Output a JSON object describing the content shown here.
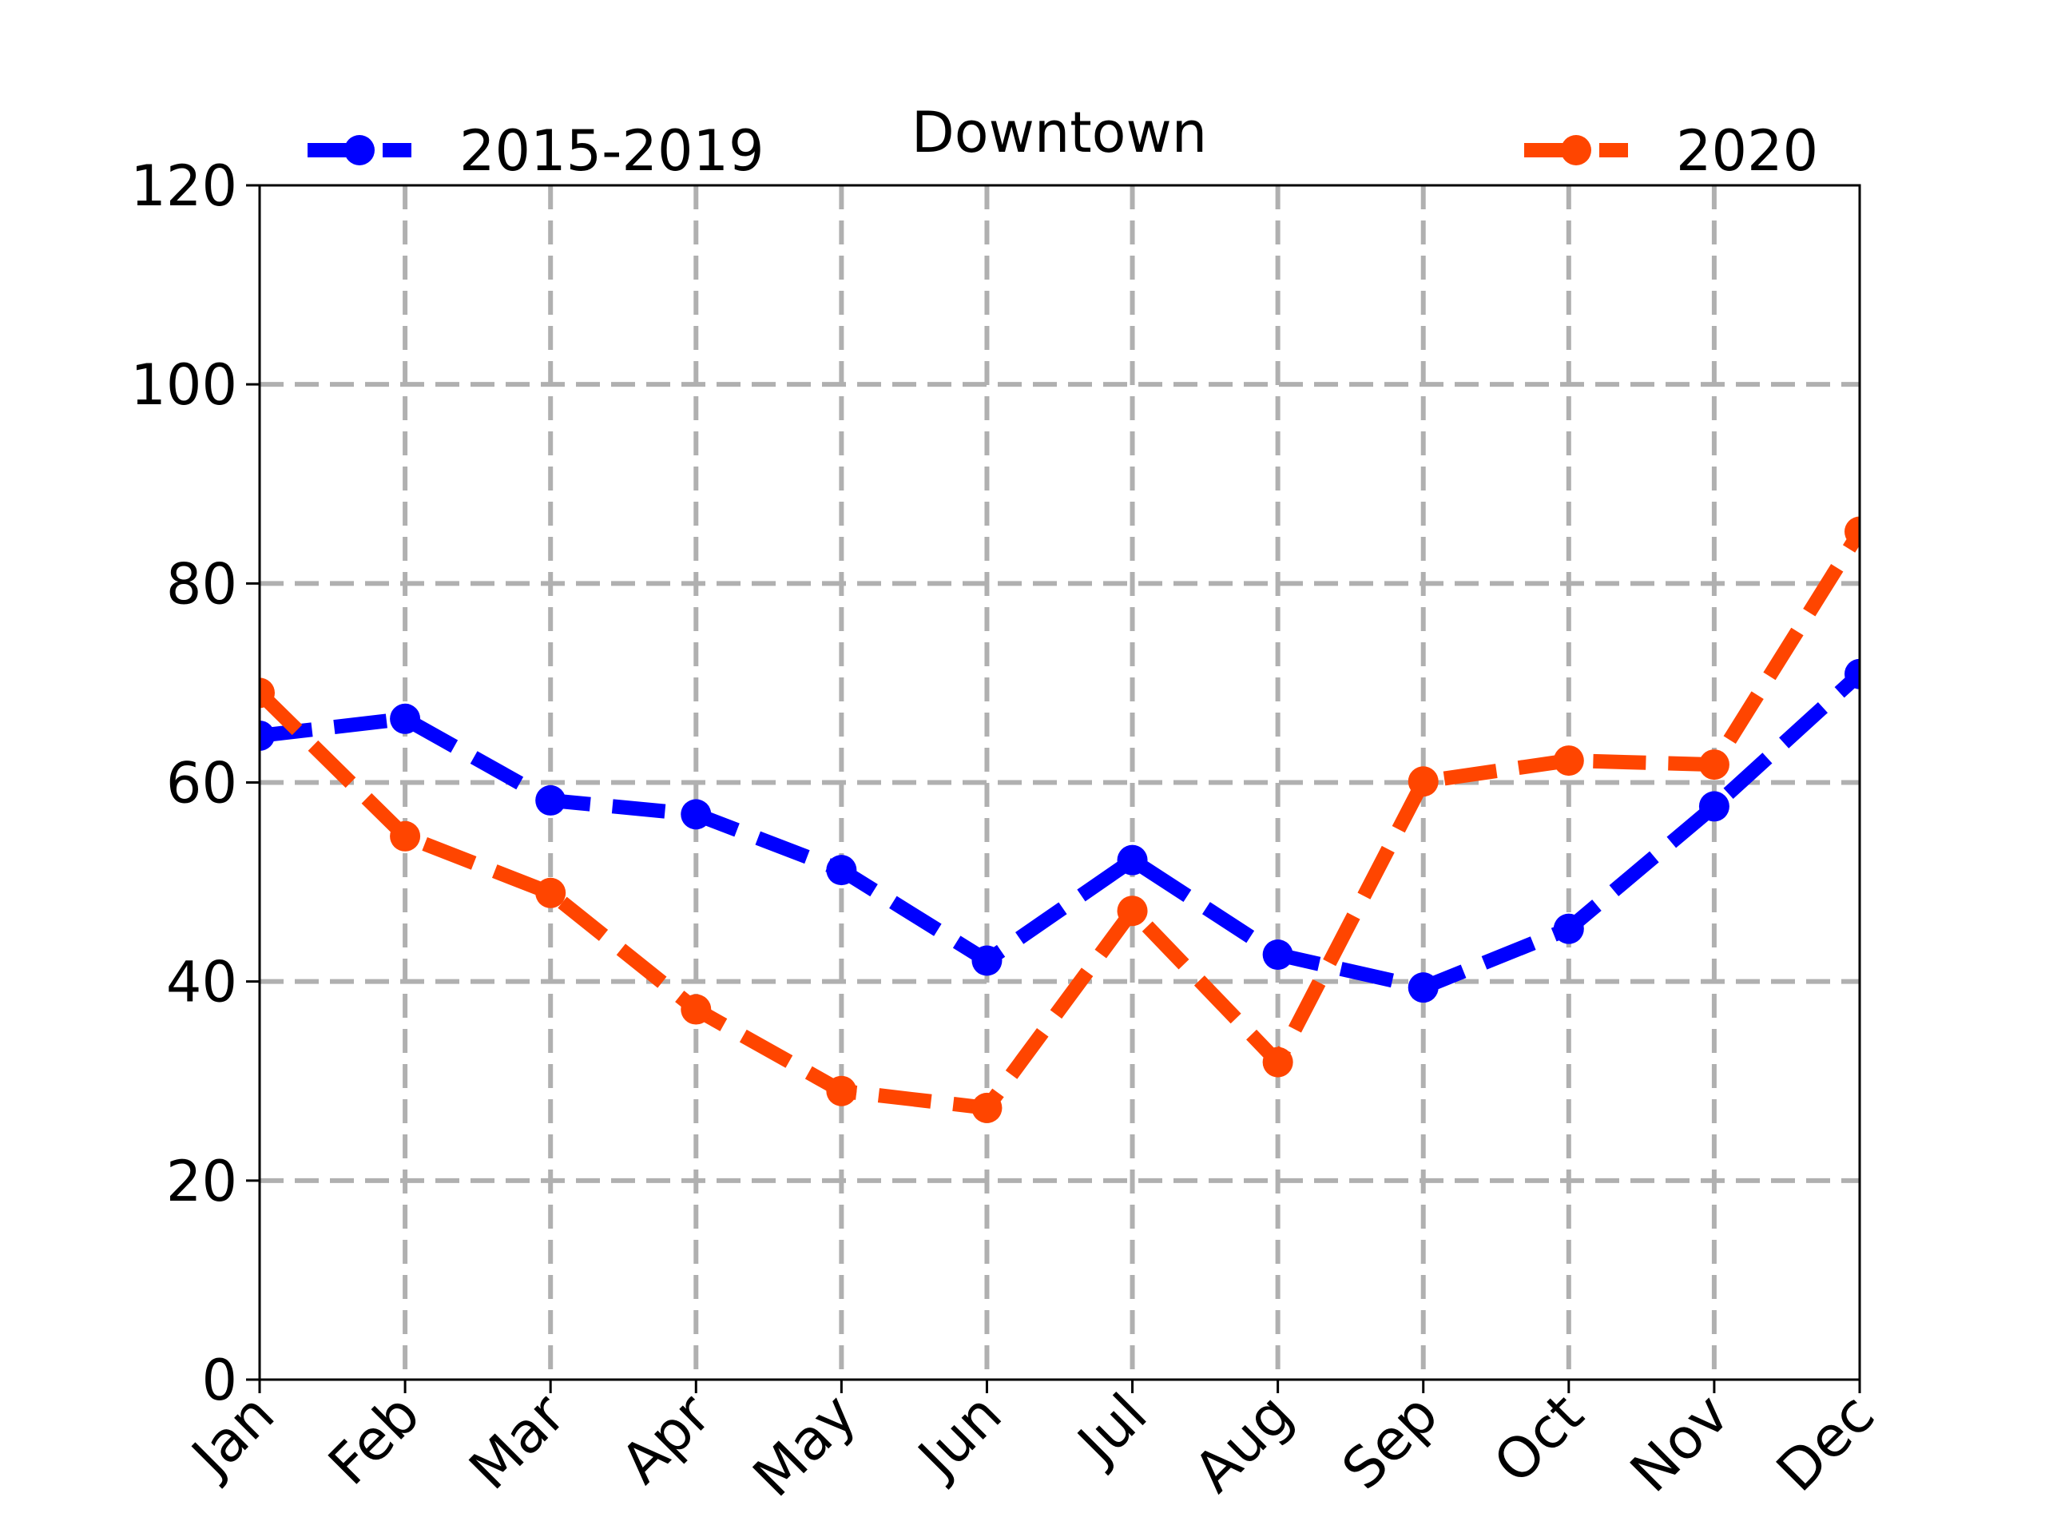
{
  "chart_data": {
    "type": "line",
    "title": "Downtown",
    "xlabel": "",
    "ylabel": "",
    "categories": [
      "Jan",
      "Feb",
      "Mar",
      "Apr",
      "May",
      "Jun",
      "Jul",
      "Aug",
      "Sep",
      "Oct",
      "Nov",
      "Dec"
    ],
    "ylim": [
      0,
      120
    ],
    "yticks": [
      0,
      20,
      40,
      60,
      80,
      100,
      120
    ],
    "grid": true,
    "legend": "top",
    "series": [
      {
        "name": "2015-2019",
        "color": "#0000ff",
        "values": [
          64.7,
          66.4,
          58.2,
          56.8,
          51.2,
          42.1,
          52.2,
          42.7,
          39.4,
          45.3,
          57.6,
          70.9
        ]
      },
      {
        "name": "2020",
        "color": "#ff4500",
        "values": [
          69.0,
          54.6,
          48.9,
          37.2,
          29.0,
          27.3,
          47.1,
          31.9,
          60.1,
          62.2,
          61.8,
          85.2
        ]
      }
    ]
  }
}
